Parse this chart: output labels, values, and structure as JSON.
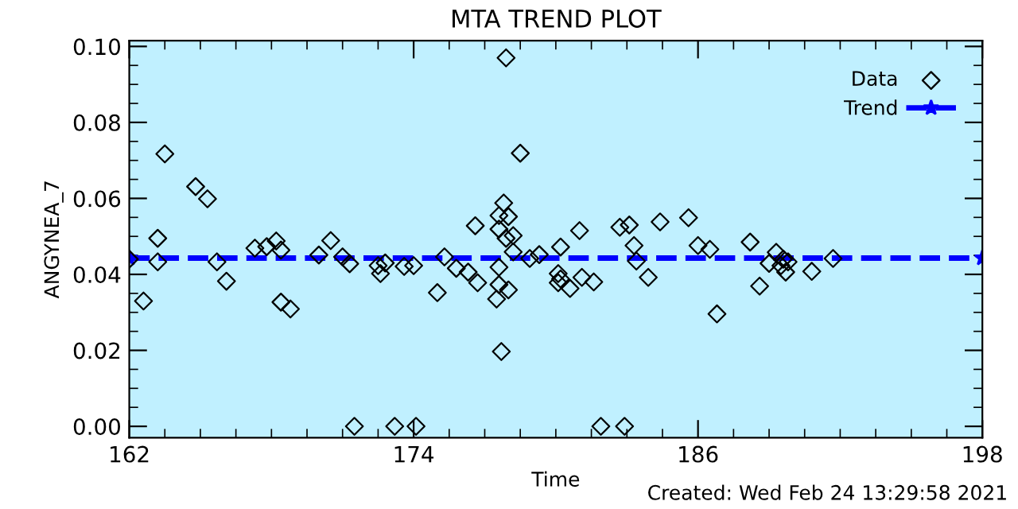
{
  "chart_data": {
    "type": "scatter",
    "title": "MTA TREND PLOT",
    "xlabel": "Time",
    "ylabel": "ANGYNEA_7",
    "xlim": [
      162,
      198
    ],
    "xticks": [
      162,
      174,
      186,
      198
    ],
    "ylim": [
      -0.003,
      0.1015
    ],
    "yticks": [
      {
        "value": 0,
        "label": "0.00"
      },
      {
        "value": 0.02,
        "label": "0.02"
      },
      {
        "value": 0.04,
        "label": "0.04"
      },
      {
        "value": 0.06,
        "label": "0.06"
      },
      {
        "value": 0.08,
        "label": "0.08"
      },
      {
        "value": 0.1,
        "label": "0.10"
      }
    ],
    "legend": "top right",
    "grid": false,
    "annotations": [
      "Created: Wed Feb 24 13:29:58 2021"
    ],
    "series": [
      {
        "name": "Data",
        "marker": "diamond",
        "color": "#000000",
        "x": [
          162.0,
          162.6,
          163.2,
          163.2,
          163.5,
          164.8,
          165.3,
          165.7,
          166.1,
          167.3,
          167.8,
          168.2,
          168.4,
          168.4,
          168.8,
          170.0,
          170.5,
          171.0,
          171.3,
          171.5,
          172.5,
          172.6,
          172.8,
          173.2,
          173.6,
          174.0,
          174.1,
          175.0,
          175.3,
          175.8,
          176.3,
          176.6,
          176.7,
          177.5,
          177.6,
          177.6,
          177.6,
          177.7,
          177.8,
          177.6,
          177.9,
          177.9,
          178.0,
          178.0,
          178.2,
          178.2,
          178.5,
          178.9,
          179.3,
          180.2,
          180.1,
          180.2,
          180.1,
          180.6,
          181.0,
          181.1,
          181.6,
          181.9,
          182.7,
          183.1,
          182.9,
          183.3,
          183.4,
          183.9,
          184.4,
          185.6,
          186.0,
          186.5,
          186.8,
          188.2,
          188.6,
          189.0,
          189.3,
          189.5,
          189.6,
          189.7,
          189.8,
          190.8,
          191.7
        ],
        "values": [
          0.044,
          0.033,
          0.0495,
          0.0433,
          0.0717,
          0.0631,
          0.0599,
          0.0433,
          0.0382,
          0.0469,
          0.0473,
          0.0488,
          0.0464,
          0.0327,
          0.0309,
          0.0451,
          0.0489,
          0.0446,
          0.0428,
          0.0,
          0.0423,
          0.0402,
          0.043,
          0.0,
          0.0421,
          0.0423,
          0.0,
          0.0352,
          0.0446,
          0.0416,
          0.0406,
          0.0528,
          0.0378,
          0.0335,
          0.0373,
          0.0419,
          0.0519,
          0.0197,
          0.0588,
          0.0555,
          0.097,
          0.0495,
          0.0359,
          0.0552,
          0.0502,
          0.0459,
          0.0719,
          0.0442,
          0.0452,
          0.0472,
          0.0402,
          0.0388,
          0.0378,
          0.0363,
          0.0515,
          0.0392,
          0.038,
          0.0,
          0.0524,
          0.053,
          0.0,
          0.0476,
          0.0435,
          0.0392,
          0.0538,
          0.0549,
          0.0476,
          0.0466,
          0.0296,
          0.0485,
          0.0369,
          0.0429,
          0.0458,
          0.0423,
          0.044,
          0.0406,
          0.0433,
          0.0408,
          0.0442
        ]
      },
      {
        "name": "Trend",
        "type": "line",
        "marker": "star",
        "line_style": "dashed",
        "color": "#0000ff",
        "x": [
          162,
          198
        ],
        "values": [
          0.0443,
          0.0443
        ]
      }
    ]
  }
}
